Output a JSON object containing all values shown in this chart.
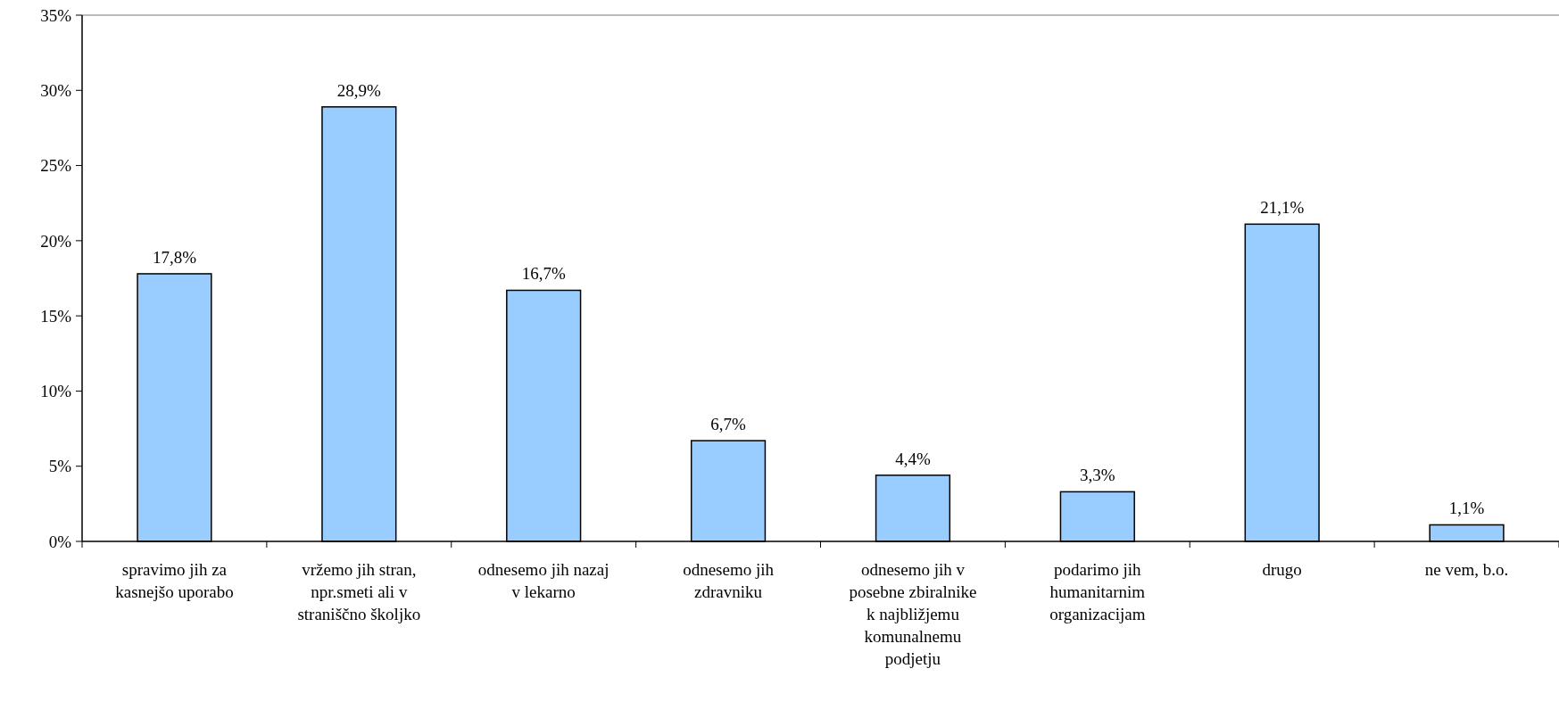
{
  "chart_data": {
    "type": "bar",
    "categories": [
      "spravimo jih za kasnejšo uporabo",
      "vržemo jih stran, npr.smeti ali v straniščno školjko",
      "odnesemo jih nazaj v lekarno",
      "odnesemo jih zdravniku",
      "odnesemo jih v posebne zbiralnike k najbližjemu komunalnemu podjetju",
      "podarimo jih humanitarnim organizacijam",
      "drugo",
      "ne vem, b.o."
    ],
    "values": [
      17.8,
      28.9,
      16.7,
      6.7,
      4.4,
      3.3,
      21.1,
      1.1
    ],
    "value_labels": [
      "17,8%",
      "28,9%",
      "16,7%",
      "6,7%",
      "4,4%",
      "3,3%",
      "21,1%",
      "1,1%"
    ],
    "color": "#99ccff",
    "ylim": [
      0,
      35
    ],
    "yticks": [
      {
        "value": 0,
        "label": "0%"
      },
      {
        "value": 5,
        "label": "5%"
      },
      {
        "value": 10,
        "label": "10%"
      },
      {
        "value": 15,
        "label": "15%"
      },
      {
        "value": 20,
        "label": "20%"
      },
      {
        "value": 25,
        "label": "25%"
      },
      {
        "value": 30,
        "label": "30%"
      },
      {
        "value": 35,
        "label": "35%"
      }
    ],
    "grid": false
  }
}
